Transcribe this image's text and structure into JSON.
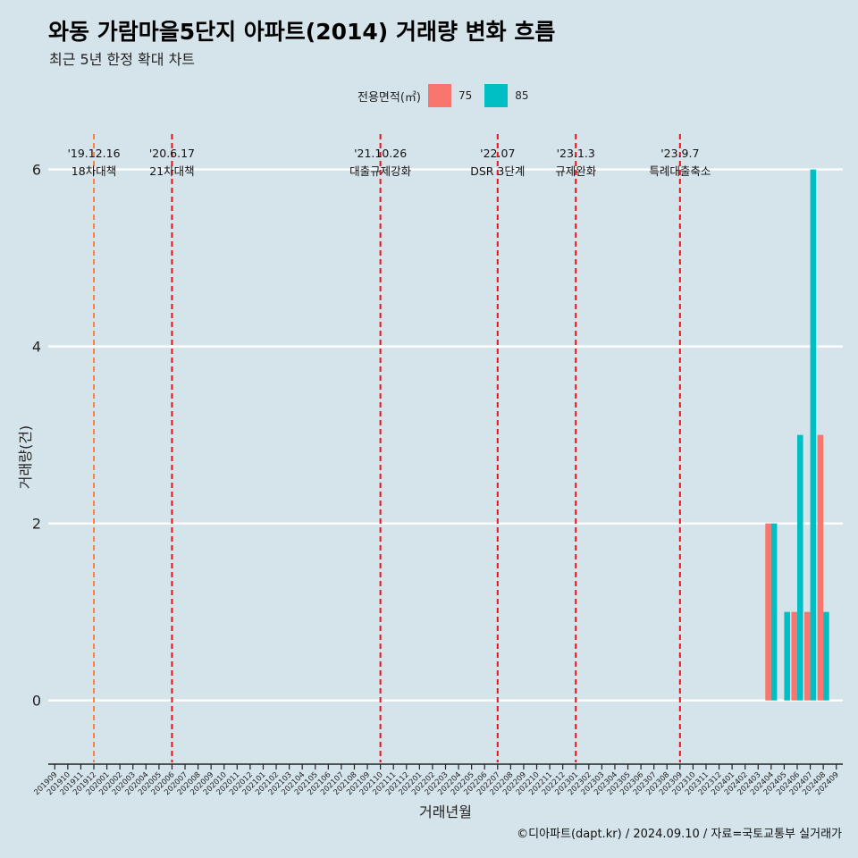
{
  "title": "와동 가람마을5단지 아파트(2014) 거래량 변화 흐름",
  "subtitle": "최근 5년 한정 확대 차트",
  "legend": {
    "title": "전용면적(㎡)",
    "items": [
      {
        "label": "75",
        "color": "#f8766d"
      },
      {
        "label": "85",
        "color": "#00bfc4"
      }
    ]
  },
  "caption": "©디아파트(dapt.kr) / 2024.09.10 / 자료=국토교통부 실거래가",
  "chart_data": {
    "type": "bar",
    "title": "와동 가람마을5단지 아파트(2014) 거래량 변화 흐름",
    "xlabel": "거래년월",
    "ylabel": "거래량(건)",
    "ylim": [
      -0.7,
      6.4
    ],
    "yticks": [
      0,
      2,
      4,
      6
    ],
    "grid": true,
    "categories": [
      "201909",
      "201910",
      "201911",
      "201912",
      "202001",
      "202002",
      "202003",
      "202004",
      "202005",
      "202006",
      "202007",
      "202008",
      "202009",
      "202010",
      "202011",
      "202012",
      "202101",
      "202102",
      "202103",
      "202104",
      "202105",
      "202106",
      "202107",
      "202108",
      "202109",
      "202110",
      "202111",
      "202112",
      "202201",
      "202202",
      "202203",
      "202204",
      "202205",
      "202206",
      "202207",
      "202208",
      "202209",
      "202210",
      "202211",
      "202212",
      "202301",
      "202302",
      "202303",
      "202304",
      "202305",
      "202306",
      "202307",
      "202308",
      "202309",
      "202310",
      "202311",
      "202312",
      "202401",
      "202402",
      "202403",
      "202404",
      "202405",
      "202406",
      "202407",
      "202408",
      "202409"
    ],
    "series": [
      {
        "name": "75",
        "color": "#f8766d",
        "points": [
          {
            "x": "202404",
            "y": 2
          },
          {
            "x": "202406",
            "y": 1
          },
          {
            "x": "202407",
            "y": 1
          },
          {
            "x": "202408",
            "y": 3
          }
        ]
      },
      {
        "name": "85",
        "color": "#00bfc4",
        "points": [
          {
            "x": "202404",
            "y": 2
          },
          {
            "x": "202405",
            "y": 1
          },
          {
            "x": "202406",
            "y": 3
          },
          {
            "x": "202407",
            "y": 6
          },
          {
            "x": "202408",
            "y": 1
          }
        ]
      }
    ],
    "annotations": [
      {
        "x": "201912",
        "date": "'19.12.16",
        "label": "18차대책",
        "color": "#ff7f3f"
      },
      {
        "x": "202006",
        "date": "'20.6.17",
        "label": "21차대책",
        "color": "#e8141c"
      },
      {
        "x": "202110",
        "date": "'21.10.26",
        "label": "대출규제강화",
        "color": "#e8141c"
      },
      {
        "x": "202207",
        "date": "'22.07",
        "label": "DSR 3단계",
        "color": "#e8141c"
      },
      {
        "x": "202301",
        "date": "'23.1.3",
        "label": "규제완화",
        "color": "#e8141c"
      },
      {
        "x": "202309",
        "date": "'23.9.7",
        "label": "특례대출축소",
        "color": "#e8141c"
      }
    ]
  }
}
